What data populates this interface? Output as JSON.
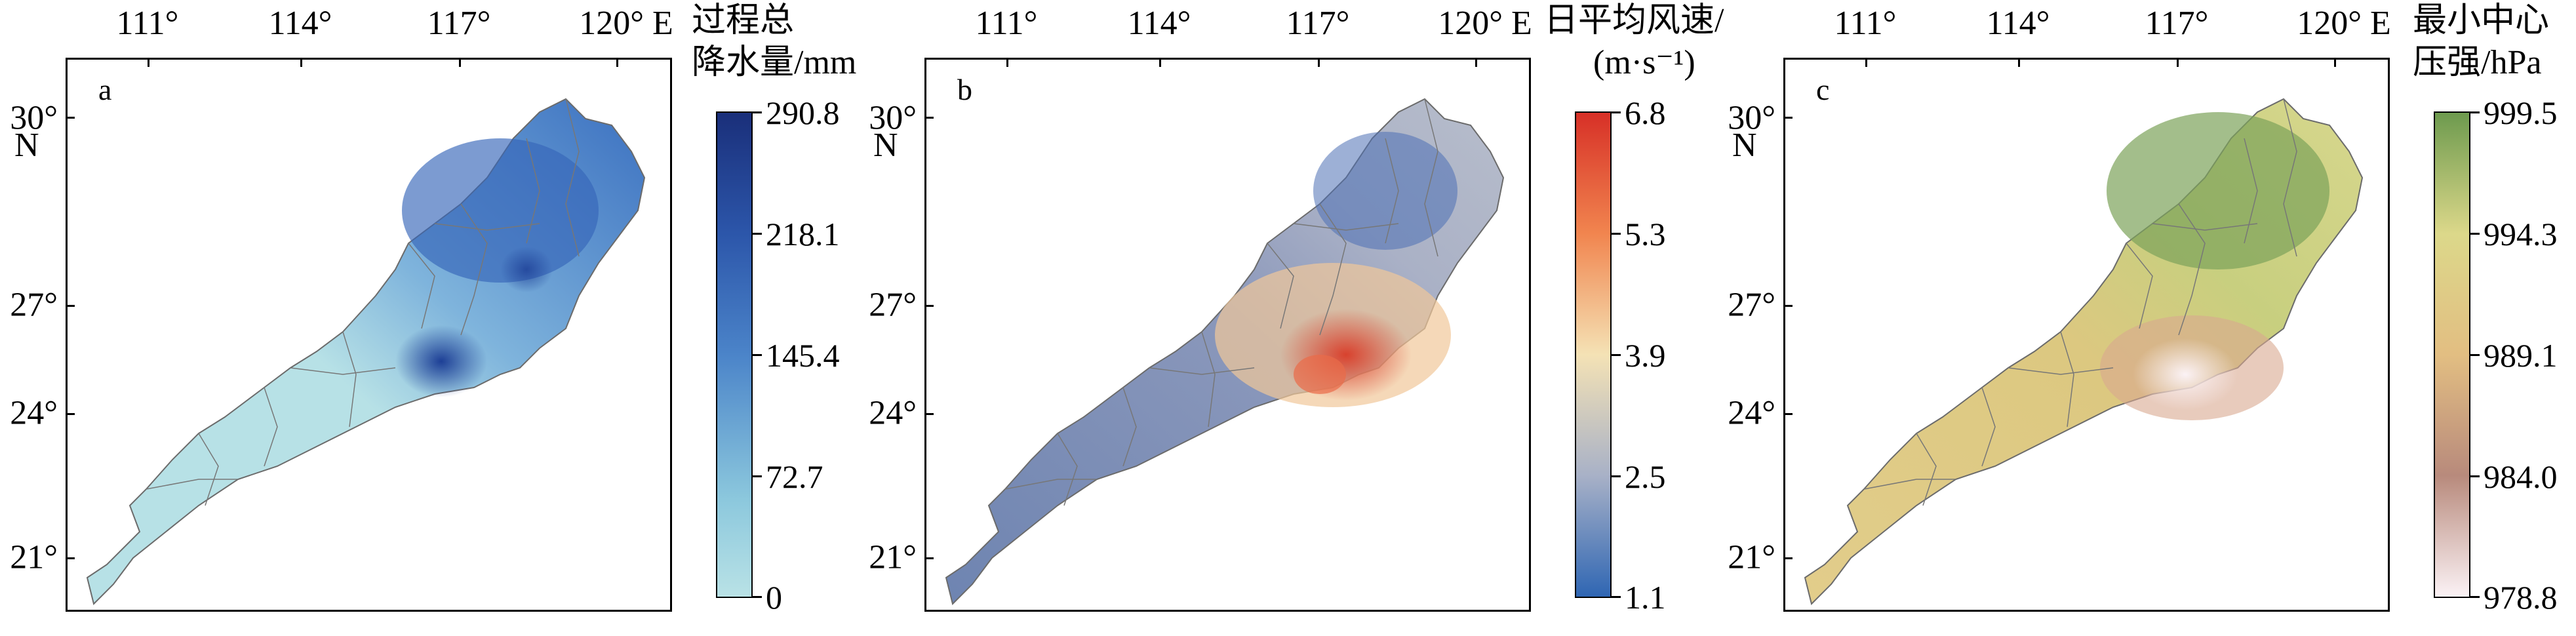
{
  "x_ticks": [
    "111°",
    "114°",
    "117°",
    "120° E"
  ],
  "y_ticks": [
    "30°",
    "27°",
    "24°",
    "21°"
  ],
  "north_label": "N",
  "panels": [
    {
      "label": "a",
      "colorbar_title_lines": [
        "过程总",
        "降水量/mm"
      ],
      "colorbar_ticks": [
        "290.8",
        "218.1",
        "145.4",
        "72.7",
        "0"
      ],
      "colorbar_values": [
        290.8,
        218.1,
        145.4,
        72.7,
        0
      ],
      "colorbar_colors": [
        "#1a2f7a",
        "#2c56aa",
        "#4b84c9",
        "#8cc8dd",
        "#b9e2e6"
      ],
      "map_colors": {
        "base": "#b7e1e6",
        "mid": "#5d95cf",
        "high": "#2e5fb4",
        "peak": "#1d3f96"
      }
    },
    {
      "label": "b",
      "colorbar_title_lines": [
        "日平均风速/",
        "(m·s⁻¹)"
      ],
      "colorbar_ticks": [
        "6.8",
        "5.3",
        "3.9",
        "2.5",
        "1.1"
      ],
      "colorbar_values": [
        6.8,
        5.3,
        3.9,
        2.5,
        1.1
      ],
      "colorbar_colors": [
        "#d73027",
        "#f1854f",
        "#f4e2b5",
        "#a8b1c7",
        "#2f66b3"
      ],
      "map_colors": {
        "base": "#7589b3",
        "mid": "#b7bccb",
        "high": "#f1c79a",
        "peak": "#d8422e"
      }
    },
    {
      "label": "c",
      "colorbar_title_lines": [
        "最小中心",
        "压强/hPa"
      ],
      "colorbar_ticks": [
        "999.5",
        "994.3",
        "989.1",
        "984.0",
        "978.8"
      ],
      "colorbar_values": [
        999.5,
        994.3,
        989.1,
        984.0,
        978.8
      ],
      "colorbar_colors": [
        "#6d9a4e",
        "#dcd88a",
        "#e2be82",
        "#b88a7c",
        "#fbf2f5"
      ],
      "map_colors": {
        "base": "#e1cd8a",
        "mid": "#d3d482",
        "high": "#7ca25a",
        "peak": "#f4e6ec"
      }
    }
  ]
}
